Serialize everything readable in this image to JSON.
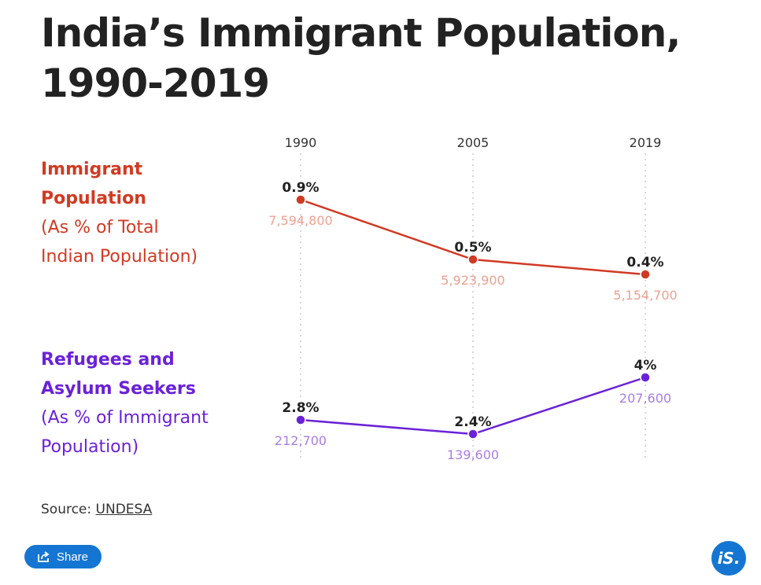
{
  "title": "India’s Immigrant Population, 1990-2019",
  "legend": {
    "immigrant": {
      "title1": "Immigrant",
      "title2": "Population",
      "sub1": "(As % of Total",
      "sub2": "Indian Population)"
    },
    "refugees": {
      "title1": "Refugees and",
      "title2": "Asylum Seekers",
      "sub1": "(As % of Immigrant",
      "sub2": "Population)"
    }
  },
  "source": {
    "label": "Source:",
    "link": "UNDESA"
  },
  "share_label": "Share",
  "logo_text": "iS.",
  "colors": {
    "red": "#d13a22",
    "red_light": "#f0a090",
    "purple": "#6a22d8",
    "purple_light": "#a67ee4",
    "text": "#222222",
    "share": "#1476d2"
  },
  "chart_data": {
    "type": "line",
    "categories": [
      "1990",
      "2005",
      "2019"
    ],
    "series": [
      {
        "name": "Immigrant Population (As % of Total Indian Population)",
        "values": [
          0.9,
          0.5,
          0.4
        ],
        "labels": [
          "0.9%",
          "0.5%",
          "0.4%"
        ],
        "counts": [
          "7,594,800",
          "5,923,900",
          "5,154,700"
        ]
      },
      {
        "name": "Refugees and Asylum Seekers (As % of Immigrant Population)",
        "values": [
          2.8,
          2.4,
          4
        ],
        "labels": [
          "2.8%",
          "2.4%",
          "4%"
        ],
        "counts": [
          "212,700",
          "139,600",
          "207,600"
        ]
      }
    ]
  }
}
